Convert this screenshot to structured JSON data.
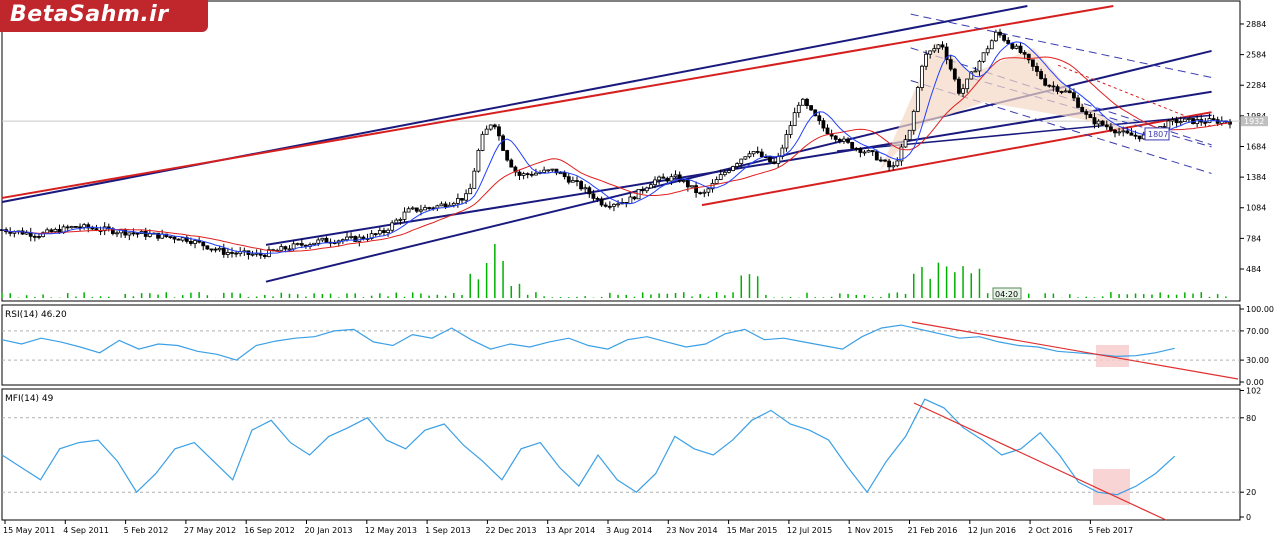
{
  "logo": {
    "text": "BetaSahm.ir"
  },
  "colors": {
    "channel_blue": "#1a1a7e",
    "channel_red": "#d62020",
    "dashed_blue": "#3a3ab0",
    "ma_fast": "#2040ff",
    "ma_slow": "#e02020",
    "oscillator": "#3ba0e6",
    "trendline": "#e03030",
    "highlight": "#f6c9c9",
    "volume": "#00b000",
    "candle": "#000000"
  },
  "chart_data": [
    {
      "type": "candlestick",
      "pane": "price",
      "y_ticks": [
        "2884",
        "2584",
        "2284",
        "1984",
        "1684",
        "1384",
        "1084",
        "784",
        "484"
      ],
      "ylim": [
        200,
        3060
      ],
      "current_price_label": "1932",
      "current_price": 1932,
      "price_tag_label": "1807",
      "price_tag": 1807,
      "time_badge": "04:20",
      "x_labels": [
        "15 May 2011",
        "4 Sep 2011",
        "5 Feb 2012",
        "27 May 2012",
        "16 Sep 2012",
        "20 Jan 2013",
        "12 May 2013",
        "1 Sep 2013",
        "22 Dec 2013",
        "13 Apr 2014",
        "3 Aug 2014",
        "23 Nov 2014",
        "15 Mar 2015",
        "12 Jul 2015",
        "1 Nov 2015",
        "21 Feb 2016",
        "12 Jun 2016",
        "2 Oct 2016",
        "5 Feb 2017"
      ],
      "price_path": [
        [
          0,
          870
        ],
        [
          0.03,
          820
        ],
        [
          0.06,
          900
        ],
        [
          0.09,
          860
        ],
        [
          0.12,
          820
        ],
        [
          0.15,
          780
        ],
        [
          0.18,
          650
        ],
        [
          0.21,
          620
        ],
        [
          0.235,
          700
        ],
        [
          0.26,
          760
        ],
        [
          0.29,
          780
        ],
        [
          0.31,
          840
        ],
        [
          0.33,
          1050
        ],
        [
          0.355,
          1100
        ],
        [
          0.38,
          1200
        ],
        [
          0.39,
          1750
        ],
        [
          0.4,
          1950
        ],
        [
          0.41,
          1600
        ],
        [
          0.42,
          1400
        ],
        [
          0.45,
          1450
        ],
        [
          0.47,
          1300
        ],
        [
          0.49,
          1120
        ],
        [
          0.51,
          1150
        ],
        [
          0.53,
          1350
        ],
        [
          0.55,
          1380
        ],
        [
          0.57,
          1200
        ],
        [
          0.59,
          1450
        ],
        [
          0.61,
          1650
        ],
        [
          0.63,
          1500
        ],
        [
          0.65,
          2150
        ],
        [
          0.67,
          1850
        ],
        [
          0.69,
          1700
        ],
        [
          0.71,
          1600
        ],
        [
          0.725,
          1460
        ],
        [
          0.74,
          1850
        ],
        [
          0.75,
          2550
        ],
        [
          0.765,
          2700
        ],
        [
          0.78,
          2200
        ],
        [
          0.795,
          2500
        ],
        [
          0.81,
          2800
        ],
        [
          0.83,
          2600
        ],
        [
          0.85,
          2300
        ],
        [
          0.87,
          2200
        ],
        [
          0.885,
          1950
        ],
        [
          0.9,
          1880
        ],
        [
          0.915,
          1800
        ],
        [
          0.93,
          1780
        ],
        [
          0.945,
          1880
        ],
        [
          0.955,
          1932
        ]
      ],
      "volume_spikes": [
        0.39,
        0.4,
        0.41,
        0.61,
        0.75,
        0.77,
        0.79
      ],
      "dashed_upper_label": "",
      "series": [
        {
          "name": "Price",
          "style": "candles"
        },
        {
          "name": "",
          "style": "moving-average-fast"
        },
        {
          "name": "",
          "style": "moving-average-slow"
        }
      ]
    },
    {
      "type": "line",
      "pane": "rsi",
      "title": "RSI(14) 46.20",
      "y_ticks": [
        "100.00",
        "70.00",
        "30.00",
        "0.00"
      ],
      "ylim": [
        0,
        100
      ],
      "levels": [
        70,
        30
      ],
      "values": [
        58,
        52,
        60,
        55,
        48,
        40,
        57,
        45,
        52,
        50,
        42,
        38,
        30,
        50,
        56,
        60,
        62,
        70,
        72,
        55,
        50,
        65,
        60,
        74,
        58,
        45,
        52,
        48,
        55,
        60,
        50,
        45,
        58,
        62,
        55,
        48,
        52,
        66,
        72,
        58,
        60,
        55,
        50,
        45,
        62,
        74,
        78,
        72,
        66,
        60,
        62,
        55,
        50,
        48,
        42,
        40,
        38,
        35,
        36,
        40,
        46.2
      ]
    },
    {
      "type": "line",
      "pane": "mfi",
      "title": "MFI(14) 49",
      "y_ticks": [
        "102",
        "80",
        "20",
        "0"
      ],
      "ylim": [
        0,
        100
      ],
      "levels": [
        80,
        20
      ],
      "values": [
        50,
        40,
        30,
        55,
        60,
        62,
        45,
        20,
        35,
        55,
        60,
        45,
        30,
        70,
        78,
        60,
        50,
        65,
        72,
        80,
        62,
        55,
        70,
        75,
        58,
        45,
        30,
        55,
        60,
        40,
        25,
        50,
        30,
        20,
        35,
        65,
        55,
        50,
        62,
        78,
        86,
        75,
        70,
        62,
        40,
        20,
        45,
        65,
        95,
        88,
        72,
        62,
        50,
        55,
        68,
        50,
        28,
        20,
        18,
        25,
        35,
        49
      ]
    }
  ]
}
